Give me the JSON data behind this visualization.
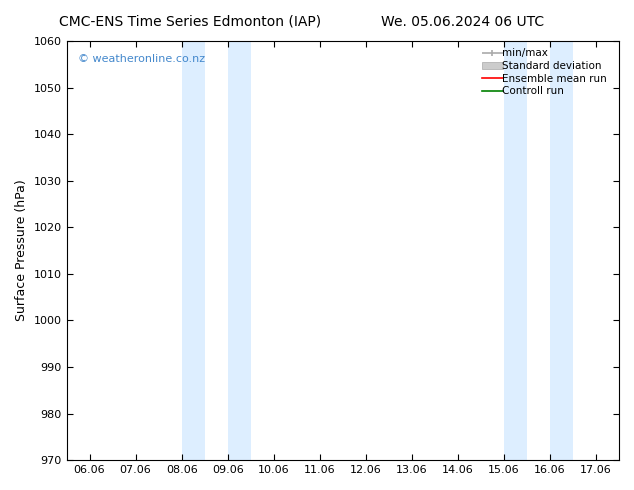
{
  "title_left": "CMC-ENS Time Series Edmonton (IAP)",
  "title_right": "We. 05.06.2024 06 UTC",
  "ylabel": "Surface Pressure (hPa)",
  "ylim": [
    970,
    1060
  ],
  "yticks": [
    970,
    980,
    990,
    1000,
    1010,
    1020,
    1030,
    1040,
    1050,
    1060
  ],
  "xlim": [
    0,
    11
  ],
  "xtick_labels": [
    "06.06",
    "07.06",
    "08.06",
    "09.06",
    "10.06",
    "11.06",
    "12.06",
    "13.06",
    "14.06",
    "15.06",
    "16.06",
    "17.06"
  ],
  "xtick_positions": [
    0,
    1,
    2,
    3,
    4,
    5,
    6,
    7,
    8,
    9,
    10,
    11
  ],
  "shaded_regions": [
    {
      "xmin": 2.0,
      "xmax": 2.5,
      "color": "#ddeeff"
    },
    {
      "xmin": 3.0,
      "xmax": 3.5,
      "color": "#ddeeff"
    },
    {
      "xmin": 9.0,
      "xmax": 9.5,
      "color": "#ddeeff"
    },
    {
      "xmin": 10.0,
      "xmax": 10.5,
      "color": "#ddeeff"
    }
  ],
  "watermark": "© weatheronline.co.nz",
  "watermark_color": "#4488cc",
  "legend_entries": [
    {
      "label": "min/max",
      "color": "#aaaaaa",
      "lw": 1.5
    },
    {
      "label": "Standard deviation",
      "color": "#cccccc",
      "lw": 6
    },
    {
      "label": "Ensemble mean run",
      "color": "red",
      "lw": 1.5
    },
    {
      "label": "Controll run",
      "color": "green",
      "lw": 1.5
    }
  ],
  "bg_color": "#ffffff",
  "spine_color": "#000000",
  "title_fontsize": 10,
  "tick_fontsize": 8,
  "ylabel_fontsize": 9
}
